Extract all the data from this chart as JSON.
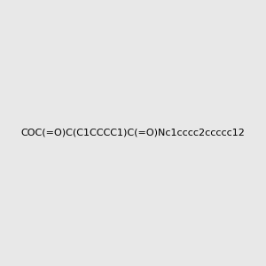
{
  "smiles": "COC(=O)C(C1CCCC1)C(=O)Nc1cccc2ccccc12",
  "title": "",
  "background_color": "#e8e8e8",
  "figsize": [
    3.0,
    3.0
  ],
  "dpi": 100
}
